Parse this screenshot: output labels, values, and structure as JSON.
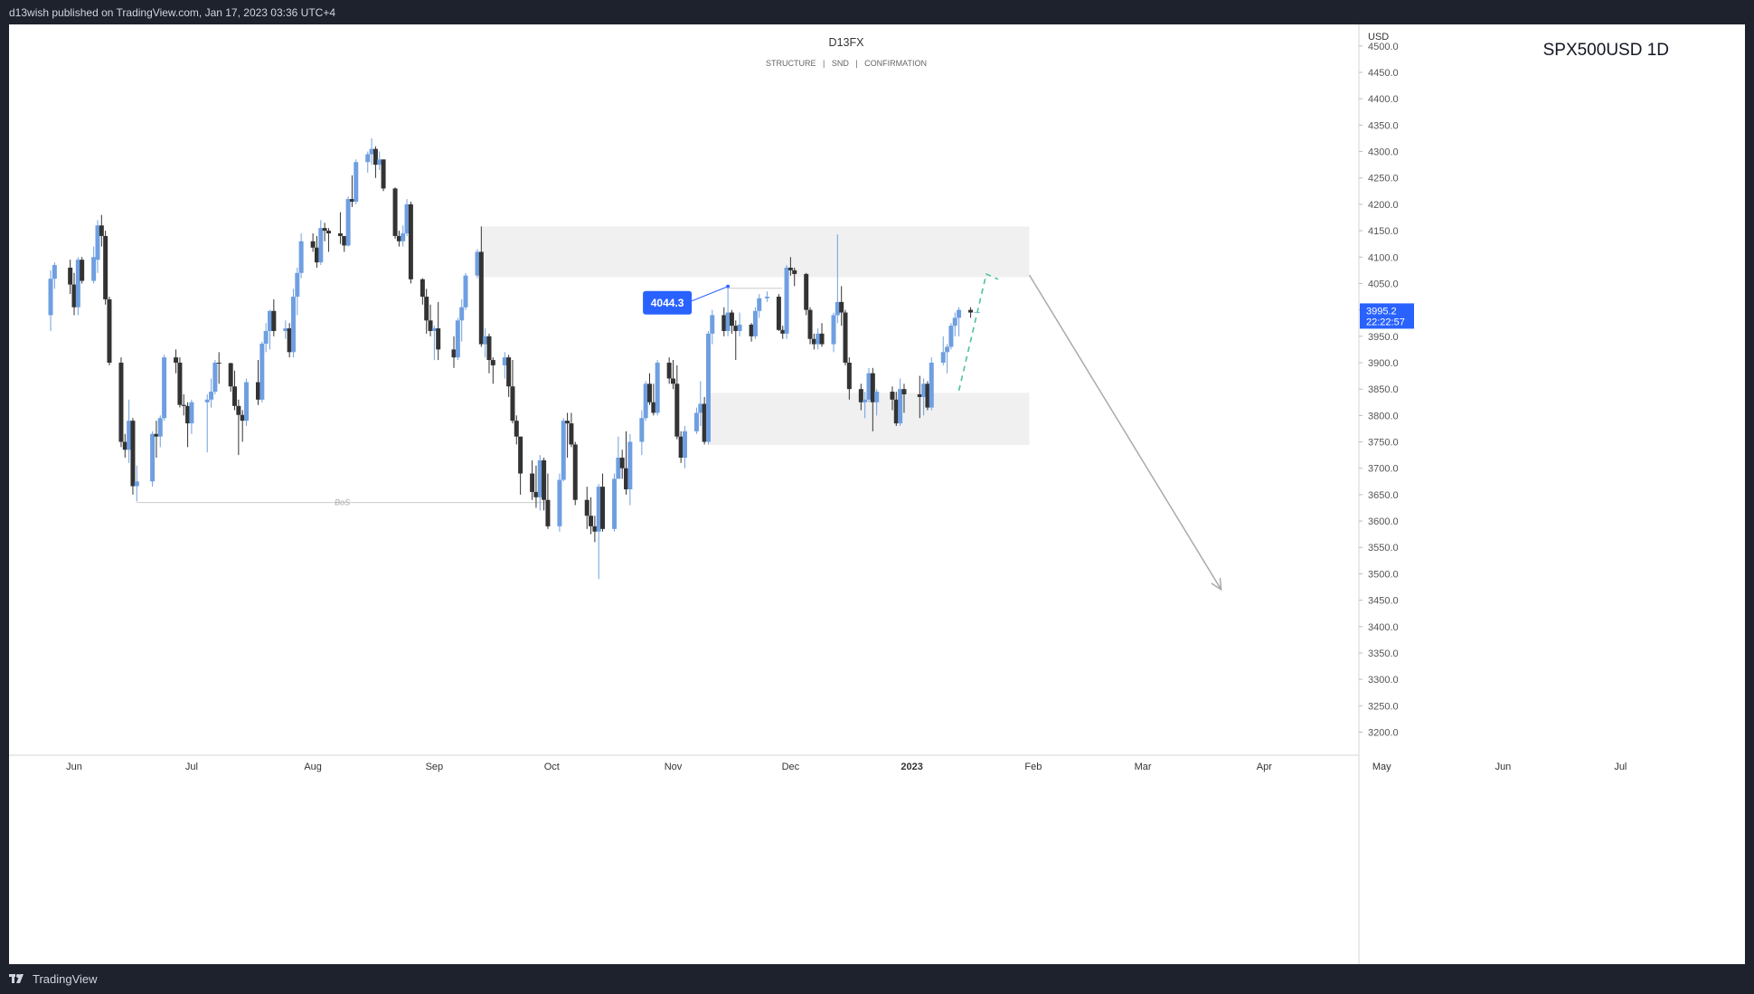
{
  "header": {
    "published_text": "d13wish published on TradingView.com, Jan 17, 2023 03:36 UTC+4"
  },
  "footer": {
    "brand": "TradingView",
    "logo_icon": "tradingview-logo-icon"
  },
  "colors": {
    "bull": "#6f9fe0",
    "bear": "#333333",
    "zone": "#f0f0f0",
    "label_bg": "#2962ff",
    "projection_up": "#4cc1a0",
    "projection_down": "#aaaaaa",
    "axis_text": "#555555"
  },
  "chart_data": {
    "type": "candlestick",
    "title": "D13FX",
    "subtitle": "STRUCTURE   |   SND   |   CONFIRMATION",
    "symbol": "SPX500USD 1D",
    "currency": "USD",
    "ylim": [
      3170,
      4510
    ],
    "y_ticks": [
      "4500.0",
      "4450.0",
      "4400.0",
      "4350.0",
      "4300.0",
      "4250.0",
      "4200.0",
      "4150.0",
      "4100.0",
      "4050.0",
      "4000.0",
      "3950.0",
      "3900.0",
      "3850.0",
      "3800.0",
      "3750.0",
      "3700.0",
      "3650.0",
      "3600.0",
      "3550.0",
      "3500.0",
      "3450.0",
      "3400.0",
      "3350.0",
      "3300.0",
      "3250.0",
      "3200.0"
    ],
    "x_ticks": [
      {
        "label": "Jun",
        "date": "2022-06-01"
      },
      {
        "label": "Jul",
        "date": "2022-07-01"
      },
      {
        "label": "Aug",
        "date": "2022-08-01"
      },
      {
        "label": "Sep",
        "date": "2022-09-01"
      },
      {
        "label": "Oct",
        "date": "2022-10-01"
      },
      {
        "label": "Nov",
        "date": "2022-11-01"
      },
      {
        "label": "Dec",
        "date": "2022-12-01"
      },
      {
        "label": "2023",
        "date": "2023-01-01"
      },
      {
        "label": "Feb",
        "date": "2023-02-01"
      },
      {
        "label": "Mar",
        "date": "2023-03-01"
      },
      {
        "label": "Apr",
        "date": "2023-04-01"
      },
      {
        "label": "May",
        "date": "2023-05-01"
      },
      {
        "label": "Jun",
        "date": "2023-06-01"
      },
      {
        "label": "Jul",
        "date": "2023-07-01"
      }
    ],
    "last_price": {
      "value": 3995.2,
      "label": "3995.2",
      "countdown": "22:22:57"
    },
    "callout": {
      "value": 4044.3,
      "label": "4044.3",
      "date": "2022-11-15"
    },
    "bos": {
      "label": "BoS",
      "price": 3635,
      "from": "2022-06-17",
      "to": "2022-09-30"
    },
    "zones": [
      {
        "name": "supply",
        "from": "2022-09-13",
        "to": "2023-01-31",
        "low": 4062,
        "high": 4158
      },
      {
        "name": "demand",
        "from": "2022-11-10",
        "to": "2023-01-31",
        "low": 3744,
        "high": 3843
      }
    ],
    "projections": {
      "up": [
        [
          "2023-01-13",
          3847
        ],
        [
          "2023-01-20",
          4068
        ],
        [
          "2023-01-23",
          4058
        ]
      ],
      "down": [
        [
          "2023-01-31",
          4066
        ],
        [
          "2023-03-21",
          3470
        ]
      ]
    },
    "candles": [
      [
        "2022-05-26",
        3990,
        4075,
        3960,
        4059
      ],
      [
        "2022-05-27",
        4059,
        4090,
        4040,
        4085
      ],
      [
        "2022-05-31",
        4080,
        4095,
        4030,
        4048
      ],
      [
        "2022-06-01",
        4048,
        4070,
        3990,
        4005
      ],
      [
        "2022-06-02",
        4005,
        4100,
        3990,
        4095
      ],
      [
        "2022-06-03",
        4095,
        4100,
        4050,
        4055
      ],
      [
        "2022-06-06",
        4055,
        4120,
        4050,
        4100
      ],
      [
        "2022-06-07",
        4095,
        4170,
        4070,
        4160
      ],
      [
        "2022-06-08",
        4160,
        4180,
        4120,
        4140
      ],
      [
        "2022-06-09",
        4140,
        4150,
        4010,
        4020
      ],
      [
        "2022-06-10",
        4020,
        4025,
        3895,
        3900
      ],
      [
        "2022-06-13",
        3900,
        3910,
        3740,
        3750
      ],
      [
        "2022-06-14",
        3750,
        3765,
        3720,
        3735
      ],
      [
        "2022-06-15",
        3735,
        3830,
        3710,
        3790
      ],
      [
        "2022-06-16",
        3790,
        3795,
        3650,
        3666
      ],
      [
        "2022-06-17",
        3666,
        3705,
        3637,
        3675
      ],
      [
        "2022-06-21",
        3675,
        3770,
        3665,
        3765
      ],
      [
        "2022-06-22",
        3765,
        3790,
        3720,
        3760
      ],
      [
        "2022-06-23",
        3760,
        3800,
        3740,
        3795
      ],
      [
        "2022-06-24",
        3795,
        3915,
        3790,
        3910
      ],
      [
        "2022-06-27",
        3910,
        3925,
        3880,
        3900
      ],
      [
        "2022-06-28",
        3900,
        3910,
        3815,
        3820
      ],
      [
        "2022-06-29",
        3820,
        3840,
        3800,
        3818
      ],
      [
        "2022-06-30",
        3818,
        3825,
        3740,
        3785
      ],
      [
        "2022-07-01",
        3785,
        3830,
        3765,
        3825
      ],
      [
        "2022-07-05",
        3825,
        3840,
        3730,
        3830
      ],
      [
        "2022-07-06",
        3830,
        3870,
        3815,
        3845
      ],
      [
        "2022-07-07",
        3845,
        3905,
        3840,
        3900
      ],
      [
        "2022-07-08",
        3900,
        3920,
        3860,
        3899
      ],
      [
        "2022-07-11",
        3899,
        3900,
        3845,
        3855
      ],
      [
        "2022-07-12",
        3855,
        3885,
        3810,
        3818
      ],
      [
        "2022-07-13",
        3818,
        3830,
        3725,
        3801
      ],
      [
        "2022-07-14",
        3801,
        3810,
        3750,
        3790
      ],
      [
        "2022-07-15",
        3790,
        3870,
        3780,
        3863
      ],
      [
        "2022-07-18",
        3863,
        3905,
        3820,
        3830
      ],
      [
        "2022-07-19",
        3830,
        3940,
        3825,
        3936
      ],
      [
        "2022-07-20",
        3936,
        3975,
        3920,
        3960
      ],
      [
        "2022-07-21",
        3960,
        4000,
        3925,
        3998
      ],
      [
        "2022-07-22",
        3998,
        4020,
        3950,
        3960
      ],
      [
        "2022-07-25",
        3960,
        3980,
        3945,
        3965
      ],
      [
        "2022-07-26",
        3965,
        3975,
        3910,
        3920
      ],
      [
        "2022-07-27",
        3920,
        4040,
        3910,
        4025
      ],
      [
        "2022-07-28",
        4025,
        4080,
        3990,
        4070
      ],
      [
        "2022-07-29",
        4070,
        4145,
        4060,
        4130
      ],
      [
        "2022-08-01",
        4130,
        4145,
        4110,
        4118
      ],
      [
        "2022-08-02",
        4118,
        4140,
        4080,
        4090
      ],
      [
        "2022-08-03",
        4090,
        4170,
        4085,
        4155
      ],
      [
        "2022-08-04",
        4155,
        4165,
        4130,
        4150
      ],
      [
        "2022-08-05",
        4150,
        4155,
        4110,
        4145
      ],
      [
        "2022-08-08",
        4145,
        4185,
        4125,
        4140
      ],
      [
        "2022-08-09",
        4140,
        4140,
        4110,
        4122
      ],
      [
        "2022-08-10",
        4122,
        4215,
        4120,
        4210
      ],
      [
        "2022-08-11",
        4210,
        4255,
        4195,
        4205
      ],
      [
        "2022-08-12",
        4205,
        4285,
        4200,
        4280
      ],
      [
        "2022-08-15",
        4280,
        4300,
        4260,
        4295
      ],
      [
        "2022-08-16",
        4295,
        4325,
        4275,
        4305
      ],
      [
        "2022-08-17",
        4305,
        4310,
        4250,
        4275
      ],
      [
        "2022-08-18",
        4275,
        4300,
        4265,
        4285
      ],
      [
        "2022-08-19",
        4285,
        4285,
        4225,
        4230
      ],
      [
        "2022-08-22",
        4230,
        4232,
        4135,
        4140
      ],
      [
        "2022-08-23",
        4140,
        4150,
        4120,
        4130
      ],
      [
        "2022-08-24",
        4130,
        4160,
        4120,
        4145
      ],
      [
        "2022-08-25",
        4145,
        4210,
        4140,
        4200
      ],
      [
        "2022-08-26",
        4200,
        4205,
        4050,
        4058
      ],
      [
        "2022-08-29",
        4058,
        4060,
        4010,
        4025
      ],
      [
        "2022-08-30",
        4025,
        4040,
        3955,
        3980
      ],
      [
        "2022-08-31",
        3980,
        4010,
        3950,
        3960
      ],
      [
        "2022-09-01",
        3960,
        3970,
        3905,
        3965
      ],
      [
        "2022-09-02",
        3965,
        4015,
        3905,
        3925
      ],
      [
        "2022-09-06",
        3925,
        3950,
        3890,
        3910
      ],
      [
        "2022-09-07",
        3910,
        3985,
        3905,
        3980
      ],
      [
        "2022-09-08",
        3980,
        4020,
        3940,
        4005
      ],
      [
        "2022-09-09",
        4005,
        4070,
        4000,
        4065
      ],
      [
        "2022-09-12",
        4065,
        4115,
        4060,
        4110
      ],
      [
        "2022-09-13",
        4110,
        4158,
        3930,
        3935
      ],
      [
        "2022-09-14",
        3935,
        3965,
        3910,
        3950
      ],
      [
        "2022-09-15",
        3950,
        3955,
        3880,
        3905
      ],
      [
        "2022-09-16",
        3905,
        3910,
        3860,
        3895
      ],
      [
        "2022-09-19",
        3895,
        3920,
        3870,
        3910
      ],
      [
        "2022-09-20",
        3910,
        3915,
        3835,
        3855
      ],
      [
        "2022-09-21",
        3855,
        3905,
        3785,
        3790
      ],
      [
        "2022-09-22",
        3790,
        3800,
        3745,
        3760
      ],
      [
        "2022-09-23",
        3760,
        3760,
        3650,
        3690
      ],
      [
        "2022-09-26",
        3690,
        3715,
        3640,
        3655
      ],
      [
        "2022-09-27",
        3655,
        3705,
        3625,
        3645
      ],
      [
        "2022-09-28",
        3645,
        3725,
        3620,
        3715
      ],
      [
        "2022-09-29",
        3715,
        3720,
        3620,
        3640
      ],
      [
        "2022-09-30",
        3640,
        3690,
        3585,
        3590
      ],
      [
        "2022-10-03",
        3590,
        3690,
        3580,
        3678
      ],
      [
        "2022-10-04",
        3678,
        3795,
        3675,
        3790
      ],
      [
        "2022-10-05",
        3790,
        3805,
        3720,
        3785
      ],
      [
        "2022-10-06",
        3785,
        3805,
        3740,
        3745
      ],
      [
        "2022-10-07",
        3745,
        3750,
        3630,
        3640
      ],
      [
        "2022-10-10",
        3640,
        3665,
        3585,
        3610
      ],
      [
        "2022-10-11",
        3610,
        3645,
        3575,
        3590
      ],
      [
        "2022-10-12",
        3590,
        3610,
        3560,
        3580
      ],
      [
        "2022-10-13",
        3580,
        3670,
        3490,
        3665
      ],
      [
        "2022-10-14",
        3665,
        3690,
        3580,
        3585
      ],
      [
        "2022-10-17",
        3585,
        3690,
        3580,
        3680
      ],
      [
        "2022-10-18",
        3680,
        3760,
        3690,
        3720
      ],
      [
        "2022-10-19",
        3720,
        3735,
        3680,
        3700
      ],
      [
        "2022-10-20",
        3700,
        3770,
        3650,
        3660
      ],
      [
        "2022-10-21",
        3660,
        3765,
        3630,
        3750
      ],
      [
        "2022-10-24",
        3750,
        3810,
        3725,
        3795
      ],
      [
        "2022-10-25",
        3795,
        3865,
        3790,
        3860
      ],
      [
        "2022-10-26",
        3860,
        3880,
        3820,
        3825
      ],
      [
        "2022-10-27",
        3825,
        3860,
        3800,
        3805
      ],
      [
        "2022-10-28",
        3805,
        3905,
        3800,
        3900
      ],
      [
        "2022-10-31",
        3900,
        3910,
        3860,
        3870
      ],
      [
        "2022-11-01",
        3870,
        3905,
        3850,
        3860
      ],
      [
        "2022-11-02",
        3860,
        3895,
        3755,
        3760
      ],
      [
        "2022-11-03",
        3760,
        3770,
        3710,
        3720
      ],
      [
        "2022-11-04",
        3720,
        3780,
        3700,
        3770
      ],
      [
        "2022-11-07",
        3770,
        3815,
        3765,
        3805
      ],
      [
        "2022-11-08",
        3805,
        3865,
        3780,
        3822
      ],
      [
        "2022-11-09",
        3822,
        3835,
        3745,
        3750
      ],
      [
        "2022-11-10",
        3750,
        3960,
        3745,
        3955
      ],
      [
        "2022-11-11",
        3955,
        4000,
        3935,
        3990
      ],
      [
        "2022-11-14",
        3990,
        4005,
        3950,
        3960
      ],
      [
        "2022-11-15",
        3960,
        4044,
        3950,
        3995
      ],
      [
        "2022-11-16",
        3995,
        4000,
        3955,
        3970
      ],
      [
        "2022-11-17",
        3970,
        3980,
        3905,
        3960
      ],
      [
        "2022-11-18",
        3960,
        3995,
        3950,
        3972
      ],
      [
        "2022-11-21",
        3972,
        3975,
        3940,
        3950
      ],
      [
        "2022-11-22",
        3950,
        4005,
        3945,
        3998
      ],
      [
        "2022-11-23",
        3998,
        4030,
        3985,
        4022
      ],
      [
        "2022-11-25",
        4022,
        4035,
        4015,
        4025
      ],
      [
        "2022-11-28",
        4025,
        4030,
        3960,
        3962
      ],
      [
        "2022-11-29",
        3962,
        3970,
        3945,
        3955
      ],
      [
        "2022-11-30",
        3955,
        4085,
        3945,
        4080
      ],
      [
        "2022-12-01",
        4080,
        4100,
        4065,
        4075
      ],
      [
        "2022-12-02",
        4075,
        4080,
        4045,
        4068
      ],
      [
        "2022-12-05",
        4068,
        4070,
        3990,
        4000
      ],
      [
        "2022-12-06",
        4000,
        4005,
        3935,
        3945
      ],
      [
        "2022-12-07",
        3945,
        3955,
        3925,
        3935
      ],
      [
        "2022-12-08",
        3935,
        3965,
        3925,
        3955
      ],
      [
        "2022-12-09",
        3955,
        3975,
        3930,
        3935
      ],
      [
        "2022-12-12",
        3935,
        3995,
        3920,
        3990
      ],
      [
        "2022-12-13",
        3990,
        4143,
        3975,
        4015
      ],
      [
        "2022-12-14",
        4015,
        4045,
        3970,
        3995
      ],
      [
        "2022-12-15",
        3995,
        4000,
        3895,
        3900
      ],
      [
        "2022-12-16",
        3900,
        3910,
        3830,
        3850
      ],
      [
        "2022-12-19",
        3850,
        3860,
        3810,
        3825
      ],
      [
        "2022-12-20",
        3825,
        3845,
        3795,
        3830
      ],
      [
        "2022-12-21",
        3830,
        3890,
        3825,
        3880
      ],
      [
        "2022-12-22",
        3880,
        3890,
        3770,
        3825
      ],
      [
        "2022-12-23",
        3825,
        3850,
        3800,
        3845
      ],
      [
        "2022-12-27",
        3845,
        3855,
        3810,
        3830
      ],
      [
        "2022-12-28",
        3830,
        3845,
        3780,
        3785
      ],
      [
        "2022-12-29",
        3785,
        3870,
        3780,
        3850
      ],
      [
        "2022-12-30",
        3850,
        3860,
        3805,
        3840
      ],
      [
        "2023-01-03",
        3840,
        3875,
        3795,
        3835
      ],
      [
        "2023-01-04",
        3835,
        3870,
        3800,
        3860
      ],
      [
        "2023-01-05",
        3860,
        3865,
        3810,
        3815
      ],
      [
        "2023-01-06",
        3815,
        3910,
        3810,
        3900
      ],
      [
        "2023-01-09",
        3900,
        3950,
        3895,
        3920
      ],
      [
        "2023-01-10",
        3920,
        3935,
        3880,
        3930
      ],
      [
        "2023-01-11",
        3930,
        3975,
        3925,
        3970
      ],
      [
        "2023-01-12",
        3970,
        3995,
        3950,
        3985
      ],
      [
        "2023-01-13",
        3985,
        4005,
        3950,
        4000
      ],
      [
        "2023-01-16",
        4000,
        4005,
        3985,
        3995
      ]
    ]
  }
}
